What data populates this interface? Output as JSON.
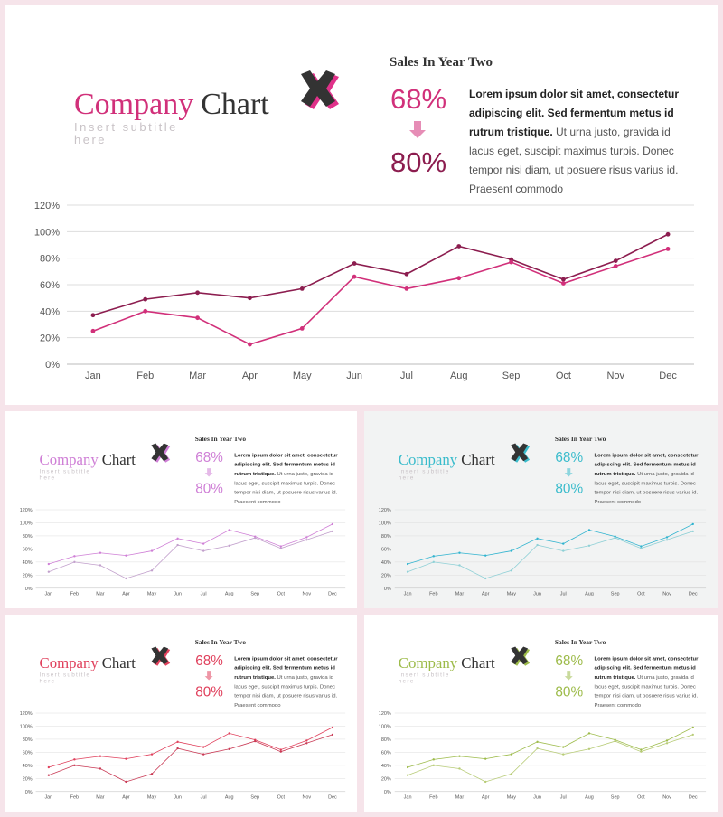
{
  "slide": {
    "title_word1": "Company",
    "title_word2": "Chart",
    "subtitle_line1": "Insert  subtitle",
    "subtitle_line2": "here",
    "sales_title": "Sales In Year Two",
    "stat_from": "68%",
    "stat_to": "80%",
    "body_lines": [
      {
        "bold": "Lorem ipsum dolor sit amet, consectetur",
        "rest": ""
      },
      {
        "bold": "adipiscing elit. Sed fermentum metus id",
        "rest": ""
      },
      {
        "bold": "rutrum tristique.",
        "rest": " Ut urna justo, gravida id"
      },
      {
        "bold": "",
        "rest": "lacus eget, suscipit maximus turpis. Donec"
      },
      {
        "bold": "",
        "rest": "tempor nisi diam, ut posuere risus varius id."
      },
      {
        "bold": "",
        "rest": "Praesent commodo"
      }
    ]
  },
  "variants": [
    {
      "id": "main",
      "accent": "#d1307a",
      "accent2": "#8c1d4f",
      "series1_color": "#8c1d4f",
      "series2_color": "#d1307a",
      "icon_shadow": "#e0318a"
    },
    {
      "id": "t-purple",
      "accent": "#cf7fd6",
      "accent2": "#cf7fd6",
      "series1_color": "#cf7fd6",
      "series2_color": "#c2a0cc",
      "icon_shadow": "#cf7fd6"
    },
    {
      "id": "t-teal",
      "accent": "#3bbccc",
      "accent2": "#3bbccc",
      "series1_color": "#2fb3cf",
      "series2_color": "#8fd0d6",
      "icon_shadow": "#3bbccc"
    },
    {
      "id": "t-red",
      "accent": "#e0405c",
      "accent2": "#e0405c",
      "series1_color": "#e0405c",
      "series2_color": "#c93a55",
      "icon_shadow": "#e0405c"
    },
    {
      "id": "t-green",
      "accent": "#9dbb4a",
      "accent2": "#9dbb4a",
      "series1_color": "#9dbb4a",
      "series2_color": "#b8cc78",
      "icon_shadow": "#9dbb4a"
    }
  ],
  "chart_data": {
    "type": "line",
    "categories": [
      "Jan",
      "Feb",
      "Mar",
      "Apr",
      "May",
      "Jun",
      "Jul",
      "Aug",
      "Sep",
      "Oct",
      "Nov",
      "Dec"
    ],
    "ylim": [
      0,
      120
    ],
    "yticks": [
      "0%",
      "20%",
      "40%",
      "60%",
      "80%",
      "100%",
      "120%"
    ],
    "grid": true,
    "series": [
      {
        "values": [
          37,
          49,
          54,
          50,
          57,
          76,
          68,
          89,
          79,
          64,
          78,
          98
        ]
      },
      {
        "values": [
          25,
          40,
          35,
          15,
          27,
          66,
          57,
          65,
          77,
          61,
          74,
          87
        ]
      }
    ]
  }
}
